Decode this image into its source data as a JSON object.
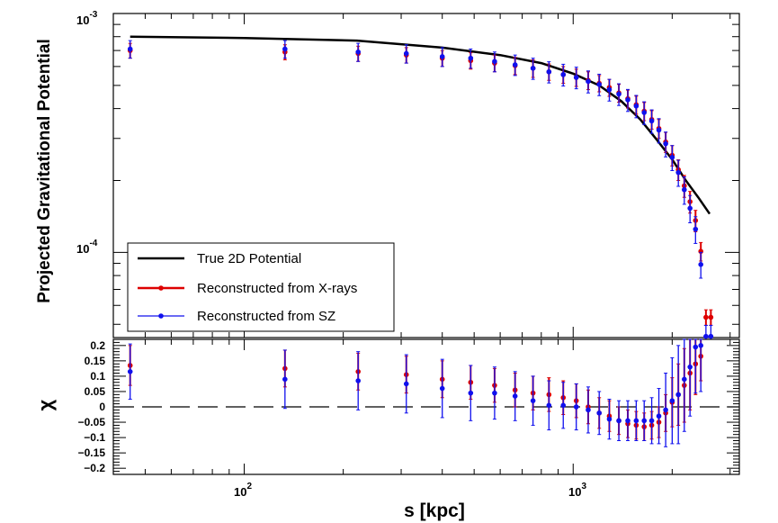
{
  "chart_data": [
    {
      "type": "line",
      "panel": "top",
      "ylabel": "Projected Gravitational Potential",
      "yscale": "log",
      "xscale": "log",
      "xlim": [
        40,
        3200
      ],
      "ylim": [
        4.4e-05,
        0.001
      ],
      "ytick_labels": {
        "major_1": "10",
        "major_1_exp": "-3",
        "major_2": "10",
        "major_2_exp": "-4"
      },
      "legend_position": "bottom-left",
      "series": [
        {
          "name": "True 2D Potential",
          "kind": "line",
          "color": "#000000",
          "x": [
            45,
            100,
            220,
            400,
            600,
            800,
            1000,
            1200,
            1400,
            1600,
            1800,
            2000,
            2200,
            2400,
            2600
          ],
          "y": [
            0.0008,
            0.00079,
            0.00077,
            0.00072,
            0.00067,
            0.00062,
            0.00056,
            0.0005,
            0.00043,
            0.00036,
            0.000295,
            0.000245,
            0.0002,
            0.00017,
            0.000145
          ]
        },
        {
          "name": "Reconstructed from X-rays",
          "kind": "points",
          "color": "#dd0000",
          "x": [
            45,
            133,
            222,
            311,
            400,
            488,
            577,
            666,
            755,
            844,
            933,
            1022,
            1111,
            1200,
            1288,
            1377,
            1466,
            1555,
            1644,
            1733,
            1822,
            1911,
            2000,
            2088,
            2177,
            2266,
            2355,
            2444,
            2533,
            2622
          ],
          "y": [
            0.0007,
            0.00069,
            0.00068,
            0.00067,
            0.00065,
            0.000635,
            0.00062,
            0.000605,
            0.00059,
            0.00057,
            0.000555,
            0.00054,
            0.000525,
            0.00051,
            0.00049,
            0.000465,
            0.00044,
            0.000415,
            0.00039,
            0.00036,
            0.00033,
            0.00029,
            0.000255,
            0.000222,
            0.00019,
            0.000163,
            0.000136,
            0.000101,
            5.35e-05,
            5.35e-05
          ],
          "err": [
            5e-05,
            5e-05,
            5e-05,
            5e-05,
            5e-05,
            5e-05,
            5e-05,
            5e-05,
            5e-05,
            4.5e-05,
            4.5e-05,
            4.5e-05,
            4.5e-05,
            4e-05,
            4e-05,
            4e-05,
            3.8e-05,
            3.6e-05,
            3.4e-05,
            3.2e-05,
            3e-05,
            2.8e-05,
            2.5e-05,
            2.2e-05,
            2e-05,
            1.7e-05,
            1.4e-05,
            9e-06,
            4e-06,
            4e-06
          ]
        },
        {
          "name": "Reconstructed from SZ",
          "kind": "points",
          "color": "#1010ee",
          "x": [
            45,
            133,
            222,
            311,
            400,
            488,
            577,
            666,
            755,
            844,
            933,
            1022,
            1111,
            1200,
            1288,
            1377,
            1466,
            1555,
            1644,
            1733,
            1822,
            1911,
            2000,
            2088,
            2177,
            2266,
            2355,
            2444,
            2533,
            2622
          ],
          "y": [
            0.00071,
            0.00071,
            0.00069,
            0.00068,
            0.00066,
            0.00065,
            0.00063,
            0.00061,
            0.00059,
            0.00057,
            0.000555,
            0.00054,
            0.00052,
            0.000505,
            0.00048,
            0.00046,
            0.000435,
            0.00041,
            0.000385,
            0.000355,
            0.000325,
            0.000285,
            0.00025,
            0.000216,
            0.000183,
            0.000153,
            0.000125,
            8.9e-05,
            4.45e-05,
            4.45e-05
          ],
          "err": [
            6e-05,
            6e-05,
            6e-05,
            6e-05,
            6e-05,
            6e-05,
            6e-05,
            6e-05,
            6e-05,
            5.8e-05,
            5.8e-05,
            5.6e-05,
            5.5e-05,
            5.2e-05,
            5e-05,
            4.8e-05,
            4.6e-05,
            4.4e-05,
            4.2e-05,
            4e-05,
            3.8e-05,
            3.4e-05,
            3e-05,
            2.7e-05,
            2.4e-05,
            2e-05,
            1.6e-05,
            1.1e-05,
            5e-06,
            5e-06
          ]
        }
      ]
    },
    {
      "type": "scatter",
      "panel": "bottom",
      "xlabel": "s [kpc]",
      "ylabel": "χ",
      "xscale": "log",
      "xlim": [
        40,
        3200
      ],
      "ylim": [
        -0.22,
        0.22
      ],
      "xtick_labels": {
        "t1": "10",
        "t1_exp": "2",
        "t2": "10",
        "t2_exp": "3"
      },
      "ytick_labels": [
        "0.2",
        "0.15",
        "0.1",
        "0.05",
        "0",
        "−0.05",
        "−0.1",
        "−0.15",
        "−0.2"
      ],
      "ytick_values": [
        0.2,
        0.15,
        0.1,
        0.05,
        0,
        -0.05,
        -0.1,
        -0.15,
        -0.2
      ],
      "reference_line": 0,
      "series": [
        {
          "name": "Reconstructed from X-rays",
          "color": "#dd0000",
          "x": [
            45,
            133,
            222,
            311,
            400,
            488,
            577,
            666,
            755,
            844,
            933,
            1022,
            1111,
            1200,
            1288,
            1377,
            1466,
            1555,
            1644,
            1733,
            1822,
            1911,
            2000,
            2088,
            2177,
            2266,
            2355,
            2444
          ],
          "y": [
            0.135,
            0.125,
            0.115,
            0.105,
            0.09,
            0.08,
            0.07,
            0.055,
            0.045,
            0.04,
            0.03,
            0.02,
            0.0,
            -0.02,
            -0.03,
            -0.045,
            -0.055,
            -0.06,
            -0.065,
            -0.06,
            -0.05,
            -0.02,
            0.015,
            0.04,
            0.07,
            0.11,
            0.14,
            0.165
          ],
          "err": [
            0.065,
            0.06,
            0.06,
            0.06,
            0.06,
            0.055,
            0.055,
            0.055,
            0.055,
            0.055,
            0.055,
            0.055,
            0.055,
            0.05,
            0.05,
            0.045,
            0.045,
            0.045,
            0.045,
            0.045,
            0.05,
            0.06,
            0.08,
            0.1,
            0.12,
            0.12,
            0.1,
            0.08
          ]
        },
        {
          "name": "Reconstructed from SZ",
          "color": "#1010ee",
          "x": [
            45,
            133,
            222,
            311,
            400,
            488,
            577,
            666,
            755,
            844,
            933,
            1022,
            1111,
            1200,
            1288,
            1377,
            1466,
            1555,
            1644,
            1733,
            1822,
            1911,
            2000,
            2088,
            2177,
            2266,
            2355,
            2444
          ],
          "y": [
            0.115,
            0.09,
            0.085,
            0.075,
            0.06,
            0.045,
            0.045,
            0.035,
            0.02,
            0.005,
            0.005,
            0.0,
            -0.01,
            -0.02,
            -0.04,
            -0.045,
            -0.045,
            -0.045,
            -0.045,
            -0.045,
            -0.03,
            -0.01,
            0.02,
            0.04,
            0.09,
            0.13,
            0.195,
            0.2
          ],
          "err": [
            0.09,
            0.095,
            0.095,
            0.095,
            0.095,
            0.09,
            0.085,
            0.08,
            0.08,
            0.08,
            0.075,
            0.075,
            0.075,
            0.07,
            0.065,
            0.065,
            0.065,
            0.065,
            0.065,
            0.075,
            0.09,
            0.12,
            0.14,
            0.16,
            0.17,
            0.16,
            0.15,
            0.15
          ]
        }
      ]
    }
  ]
}
